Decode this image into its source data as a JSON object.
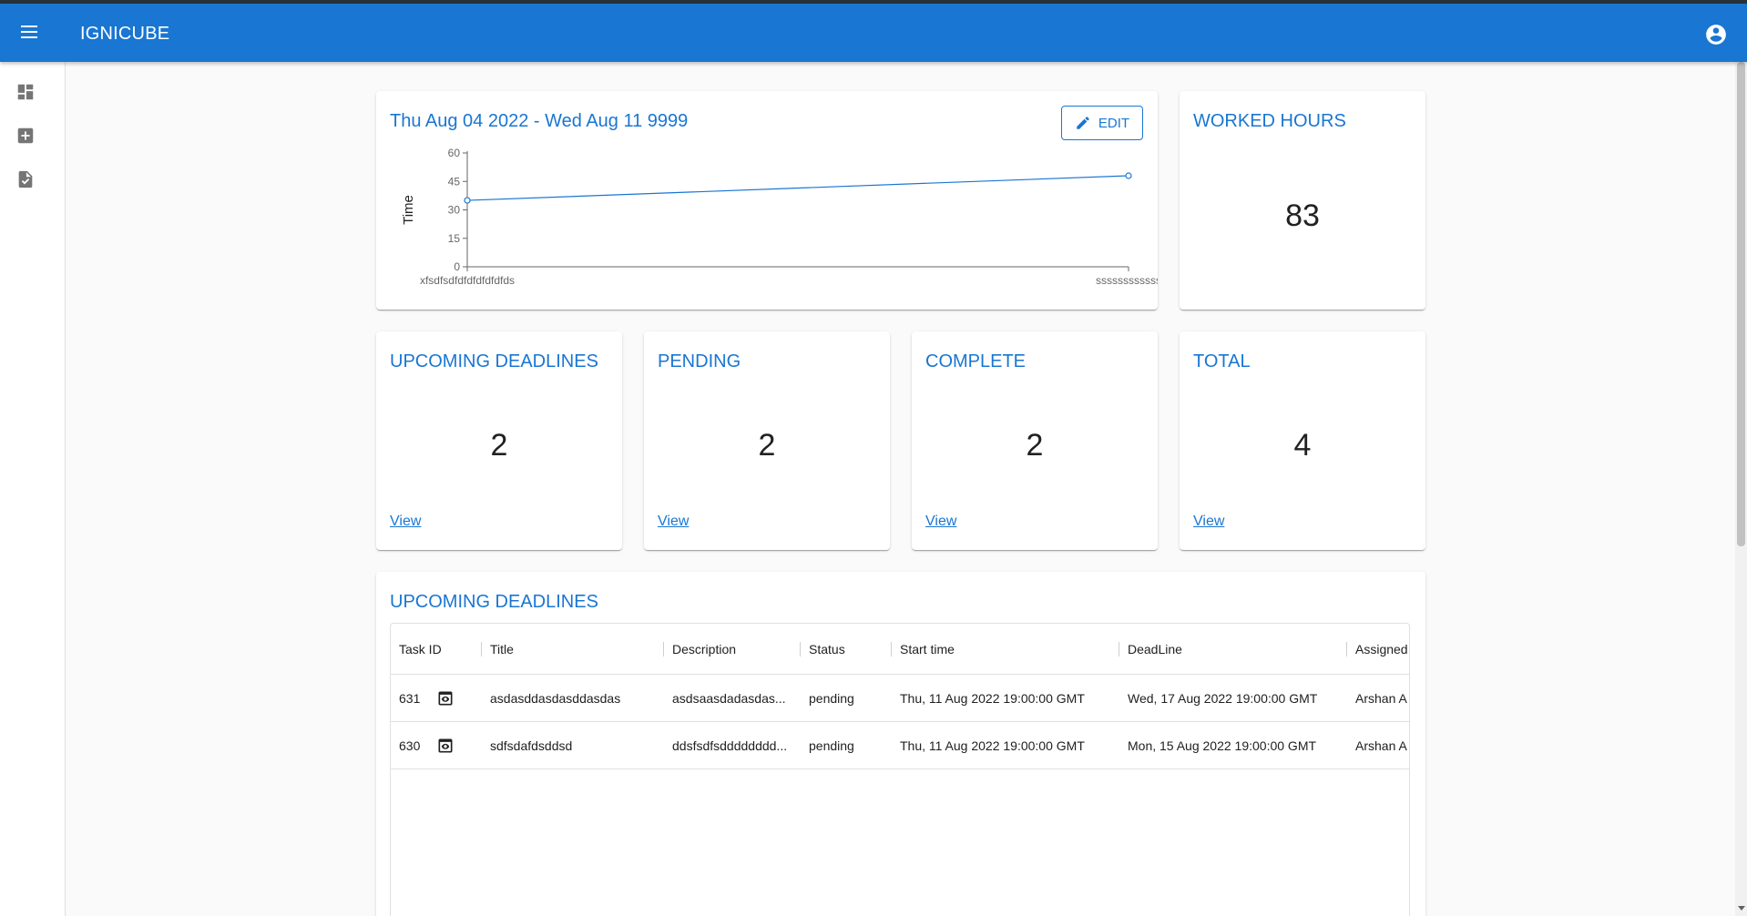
{
  "app": {
    "title": "IGNICUBE"
  },
  "icons": {
    "menu": "menu-icon",
    "account": "account-circle-icon",
    "sidebar": [
      "dashboard-icon",
      "add-box-icon",
      "task-icon"
    ],
    "edit": "pencil-icon",
    "view": "eye-icon"
  },
  "colors": {
    "primary": "#1976d2",
    "background": "#fafafa"
  },
  "chart_card": {
    "date_range": "Thu Aug 04 2022 - Wed Aug 11 9999",
    "edit_label": "EDIT"
  },
  "chart_data": {
    "type": "line",
    "categories": [
      "xfsdfsdfdfdfdfdfdfds",
      "ssssssssssss"
    ],
    "values": [
      35,
      48
    ],
    "ylabel": "Time",
    "xlabel": "",
    "ylim": [
      0,
      60
    ],
    "yticks": [
      "0",
      "15",
      "30",
      "45",
      "60"
    ],
    "grid": false
  },
  "worked_hours": {
    "title": "WORKED HOURS",
    "value": "83"
  },
  "stats": [
    {
      "title": "UPCOMING DEADLINES",
      "value": "2",
      "link": "View"
    },
    {
      "title": "PENDING",
      "value": "2",
      "link": "View"
    },
    {
      "title": "COMPLETE",
      "value": "2",
      "link": "View"
    },
    {
      "title": "TOTAL",
      "value": "4",
      "link": "View"
    }
  ],
  "deadlines": {
    "title": "UPCOMING DEADLINES",
    "columns": [
      "Task ID",
      "Title",
      "Description",
      "Status",
      "Start time",
      "DeadLine",
      "Assigned"
    ],
    "rows": [
      {
        "id": "631",
        "title": "asdasddasdasddasdas",
        "description": "asdsaasdadasdas...",
        "status": "pending",
        "start": "Thu, 11 Aug 2022 19:00:00 GMT",
        "deadline": "Wed, 17 Aug 2022 19:00:00 GMT",
        "assigned": "Arshan A"
      },
      {
        "id": "630",
        "title": "sdfsdafdsddsd",
        "description": "ddsfsdfsdddddddd...",
        "status": "pending",
        "start": "Thu, 11 Aug 2022 19:00:00 GMT",
        "deadline": "Mon, 15 Aug 2022 19:00:00 GMT",
        "assigned": "Arshan A"
      }
    ]
  }
}
